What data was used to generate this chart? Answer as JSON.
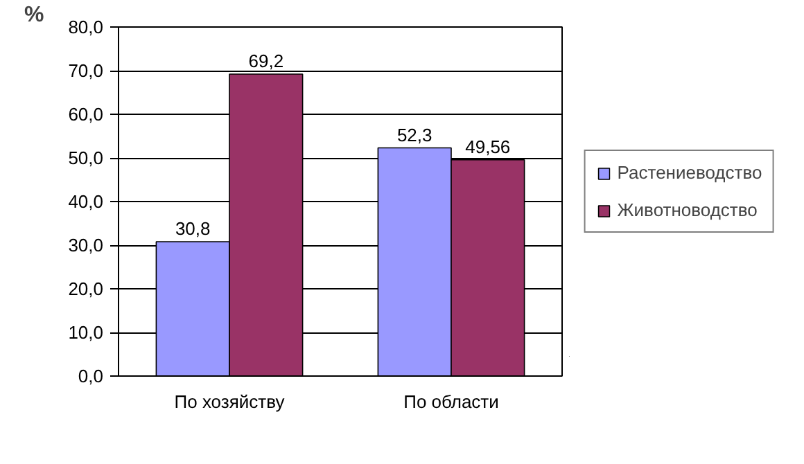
{
  "chart_data": {
    "type": "bar",
    "ylabel": "%",
    "categories": [
      "По хозяйству",
      "По области"
    ],
    "series": [
      {
        "name": "Растениеводство",
        "color": "#9999ff",
        "values": [
          30.8,
          52.3
        ],
        "value_labels": [
          "30,8",
          "52,3"
        ]
      },
      {
        "name": "Животноводство",
        "color": "#993366",
        "values": [
          69.2,
          49.56
        ],
        "value_labels": [
          "69,2",
          "49,56"
        ]
      }
    ],
    "ylim": [
      0,
      80
    ],
    "yticks": [
      {
        "value": 0,
        "label": "0,0"
      },
      {
        "value": 10,
        "label": "10,0"
      },
      {
        "value": 20,
        "label": "20,0"
      },
      {
        "value": 30,
        "label": "30,0"
      },
      {
        "value": 40,
        "label": "40,0"
      },
      {
        "value": 50,
        "label": "50,0"
      },
      {
        "value": 60,
        "label": "60,0"
      },
      {
        "value": 70,
        "label": "70,0"
      },
      {
        "value": 80,
        "label": "80,0"
      }
    ],
    "grid": "y",
    "legend": "right"
  }
}
